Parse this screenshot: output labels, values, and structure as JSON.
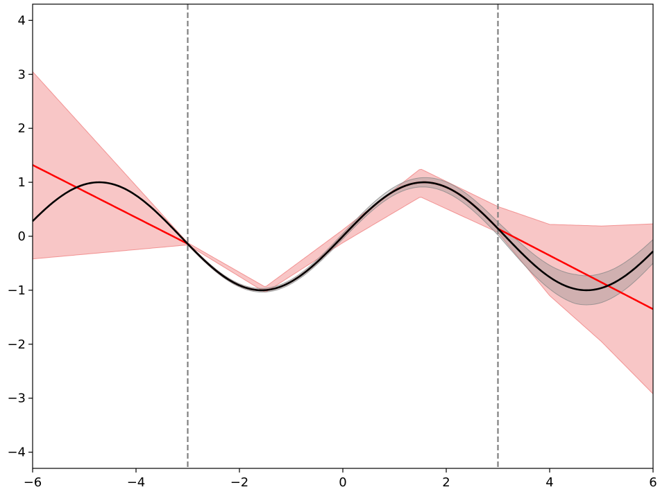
{
  "chart_data": {
    "type": "line",
    "title": "",
    "xlabel": "",
    "ylabel": "",
    "xlim": [
      -6,
      6
    ],
    "ylim": [
      -4.3,
      4.3
    ],
    "grid": false,
    "x_ticks": [
      -6,
      -4,
      -2,
      0,
      2,
      4,
      6
    ],
    "y_ticks": [
      -4,
      -3,
      -2,
      -1,
      0,
      1,
      2,
      3,
      4
    ],
    "x_tick_labels": [
      "−6",
      "−4",
      "−2",
      "0",
      "2",
      "4",
      "6"
    ],
    "y_tick_labels": [
      "−4",
      "−3",
      "−2",
      "−1",
      "0",
      "1",
      "2",
      "3",
      "4"
    ],
    "vertical_lines": [
      {
        "x": -3,
        "style": "dashed",
        "color": "#808080"
      },
      {
        "x": 3,
        "style": "dashed",
        "color": "#808080"
      }
    ],
    "series": [
      {
        "color": "#ff0000",
        "style": "line",
        "x": [
          -6,
          -3,
          -1.5,
          0,
          1.5,
          3,
          6
        ],
        "y": [
          1.32,
          -0.14,
          -1.0,
          0.0,
          1.0,
          0.14,
          -1.35
        ]
      },
      {
        "color": "#000000",
        "style": "line",
        "function": "sin(x)",
        "x_range": [
          -6,
          6
        ]
      }
    ],
    "bands": [
      {
        "series": "red",
        "color": "#f08080",
        "opacity": 0.45,
        "x": [
          -6,
          -3,
          -1.5,
          0,
          1.5,
          3,
          4,
          5,
          6
        ],
        "lower": [
          -0.42,
          -0.16,
          -1.04,
          -0.12,
          0.73,
          0.07,
          -1.1,
          -1.95,
          -2.92
        ],
        "upper": [
          3.05,
          -0.12,
          -0.94,
          0.12,
          1.25,
          0.55,
          0.22,
          0.19,
          0.23
        ]
      },
      {
        "series": "black",
        "color": "#888888",
        "opacity": 0.35,
        "function": "sin(x)",
        "x": [
          -3,
          0,
          3,
          4,
          4.5,
          5,
          5.5,
          6
        ],
        "half_width": [
          0.02,
          0.05,
          0.12,
          0.22,
          0.27,
          0.27,
          0.25,
          0.22
        ]
      }
    ]
  }
}
